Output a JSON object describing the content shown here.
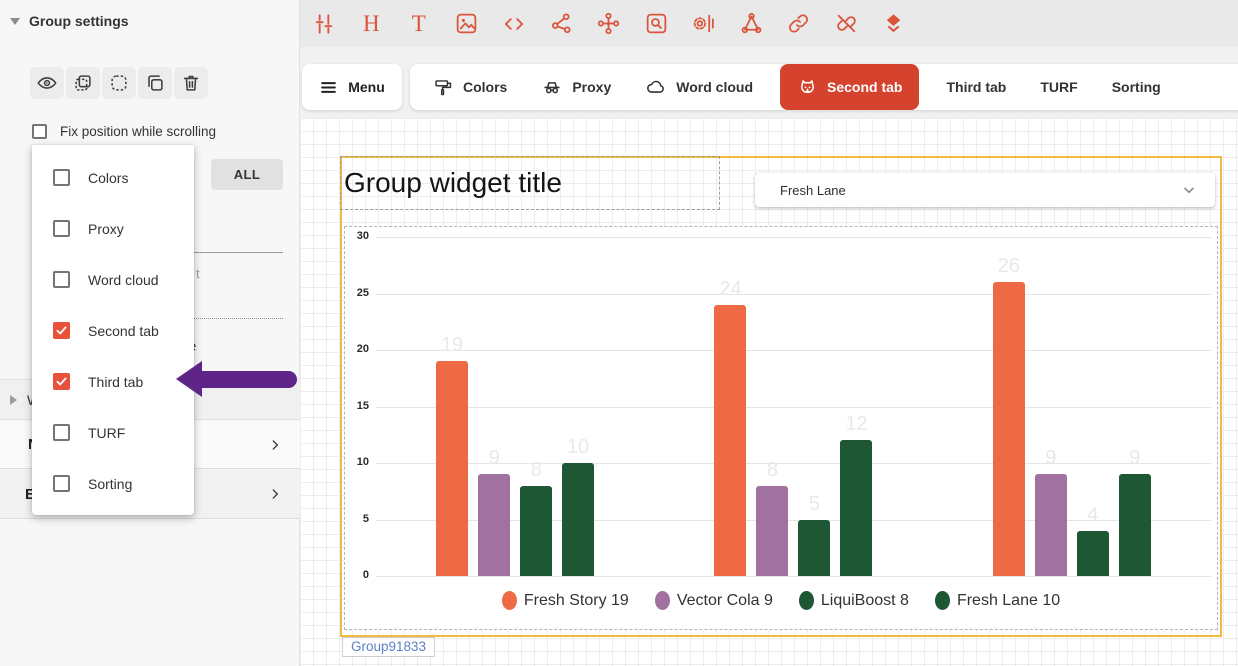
{
  "sidebar": {
    "title": "Group settings",
    "toolbar_icons": [
      "visibility",
      "select",
      "lasso",
      "duplicate",
      "delete"
    ],
    "fix_position_label": "Fix position while scrolling",
    "all_button_label": "ALL",
    "menu_items": [
      {
        "label": "Colors",
        "checked": false
      },
      {
        "label": "Proxy",
        "checked": false
      },
      {
        "label": "Word cloud",
        "checked": false
      },
      {
        "label": "Second tab",
        "checked": true
      },
      {
        "label": "Third tab",
        "checked": true
      },
      {
        "label": "TURF",
        "checked": false
      },
      {
        "label": "Sorting",
        "checked": false
      }
    ],
    "clipped_fragments": {
      "hint": "t",
      "row": "e",
      "collapsed_w": "W",
      "section_n": "N",
      "section_e": "E"
    }
  },
  "top_toolbar": {
    "icons": [
      "sliders",
      "heading",
      "text",
      "image",
      "code",
      "share",
      "cluster",
      "search-box",
      "gear-bars",
      "trefoil",
      "link",
      "unlink",
      "stack"
    ]
  },
  "tab_bar": {
    "menu_label": "Menu",
    "tabs": [
      {
        "label": "Colors",
        "icon": "paint-roller",
        "active": false
      },
      {
        "label": "Proxy",
        "icon": "proxy-glasses",
        "active": false
      },
      {
        "label": "Word cloud",
        "icon": "cloud",
        "active": false
      },
      {
        "label": "Second tab",
        "icon": "pet-face",
        "active": true
      },
      {
        "label": "Third tab",
        "icon": null,
        "active": false
      },
      {
        "label": "TURF",
        "icon": null,
        "active": false
      },
      {
        "label": "Sorting",
        "icon": null,
        "active": false
      }
    ]
  },
  "canvas": {
    "widget_title": "Group widget title",
    "dropdown_value": "Fresh Lane",
    "group_name_label": "Group91833"
  },
  "chart_data": {
    "type": "bar",
    "categories": [
      "",
      "",
      ""
    ],
    "series": [
      {
        "name": "Fresh Story 19",
        "color": "#ee6a45",
        "values": [
          19,
          24,
          26
        ]
      },
      {
        "name": "Vector Cola 9",
        "color": "#a1719f",
        "values": [
          9,
          8,
          9
        ]
      },
      {
        "name": "LiquiBoost 8",
        "color": "#1d5733",
        "values": [
          8,
          5,
          4
        ]
      },
      {
        "name": "Fresh Lane 10",
        "color": "#1d5733",
        "values": [
          10,
          12,
          9
        ]
      }
    ],
    "ylim": [
      0,
      30
    ],
    "yticks": [
      0,
      5,
      10,
      15,
      20,
      25,
      30
    ],
    "grid": true,
    "legend_position": "bottom",
    "value_label_style": "faint"
  },
  "colors": {
    "toolbar_icon": "#dc543c",
    "active_tab": "#d5432e",
    "checkbox_checked": "#e8503a",
    "group_border": "#f2bb3f",
    "arrow": "#5e2487",
    "group_label_text": "#5b82c4",
    "bar_value_label": "#e9e9e9"
  }
}
